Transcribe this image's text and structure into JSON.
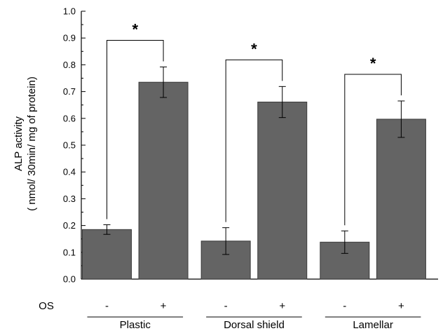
{
  "chart_data": {
    "type": "bar",
    "ylabel_lines": [
      "ALP activity",
      "( nmol/ 30min/ mg of protein)"
    ],
    "ylim": [
      0,
      1.0
    ],
    "yticks": [
      "0.0",
      "0.1",
      "0.2",
      "0.3",
      "0.4",
      "0.5",
      "0.6",
      "0.7",
      "0.8",
      "0.9",
      "1.0"
    ],
    "row_label": "OS",
    "groups": [
      {
        "label": "Plastic",
        "bars": [
          {
            "os": "-",
            "value": 0.185,
            "err": 0.018
          },
          {
            "os": "+",
            "value": 0.735,
            "err": 0.057
          }
        ],
        "significance": "*"
      },
      {
        "label": "Dorsal shield",
        "bars": [
          {
            "os": "-",
            "value": 0.142,
            "err": 0.05
          },
          {
            "os": "+",
            "value": 0.661,
            "err": 0.058
          }
        ],
        "significance": "*"
      },
      {
        "label": "Lamellar",
        "bars": [
          {
            "os": "-",
            "value": 0.138,
            "err": 0.042
          },
          {
            "os": "+",
            "value": 0.597,
            "err": 0.068
          }
        ],
        "significance": "*"
      }
    ],
    "bar_color": "#646464"
  }
}
